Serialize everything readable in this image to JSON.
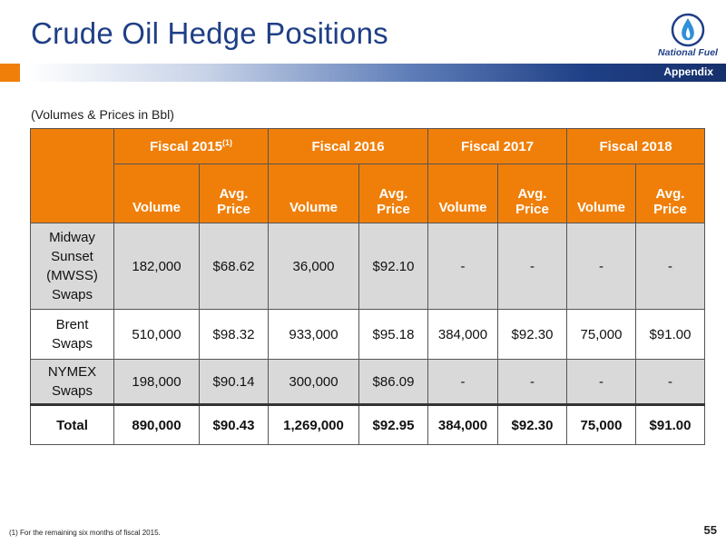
{
  "title": "Crude Oil Hedge Positions",
  "logo_text": "National Fuel",
  "section_tag": "Appendix",
  "subtitle": "(Volumes & Prices in Bbl)",
  "table": {
    "years": [
      {
        "label": "Fiscal 2015",
        "sup": "(1)"
      },
      {
        "label": "Fiscal 2016",
        "sup": ""
      },
      {
        "label": "Fiscal 2017",
        "sup": ""
      },
      {
        "label": "Fiscal 2018",
        "sup": ""
      }
    ],
    "sub_headers": {
      "volume": "Volume",
      "price_line1": "Avg.",
      "price_line2": "Price"
    },
    "rows": [
      {
        "label_lines": [
          "Midway",
          "Sunset",
          "(MWSS)",
          "Swaps"
        ],
        "values": [
          "182,000",
          "$68.62",
          "36,000",
          "$92.10",
          "-",
          "-",
          "-",
          "-"
        ]
      },
      {
        "label_lines": [
          "Brent",
          "Swaps"
        ],
        "values": [
          "510,000",
          "$98.32",
          "933,000",
          "$95.18",
          "384,000",
          "$92.30",
          "75,000",
          "$91.00"
        ]
      },
      {
        "label_lines": [
          "NYMEX",
          "Swaps"
        ],
        "values": [
          "198,000",
          "$90.14",
          "300,000",
          "$86.09",
          "-",
          "-",
          "-",
          "-"
        ]
      }
    ],
    "total": {
      "label": "Total",
      "values": [
        "890,000",
        "$90.43",
        "1,269,000",
        "$92.95",
        "384,000",
        "$92.30",
        "75,000",
        "$91.00"
      ]
    }
  },
  "footnote": "(1)  For the remaining six months of fiscal 2015.",
  "page_number": "55",
  "colors": {
    "accent": "#f07f09",
    "brand": "#1f3f86",
    "row_gray": "#d9d9d9"
  }
}
